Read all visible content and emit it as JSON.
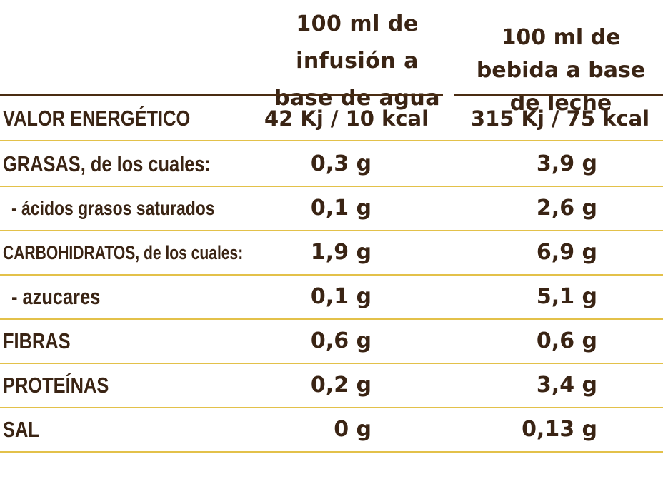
{
  "header": {
    "col1": "100 ml de infusión a base de agua",
    "col2": "100 ml de bebida a base de leche"
  },
  "rows": [
    {
      "label": "VALOR ENERGÉTICO",
      "v1": "42 Kj / 10 kcal",
      "v2": "315 Kj / 75 kcal"
    },
    {
      "label": "GRASAS, de los cuales:",
      "v1": "0,3 g",
      "v2": "3,9 g"
    },
    {
      "label": "- ácidos grasos saturados",
      "v1": "0,1 g",
      "v2": "2,6 g"
    },
    {
      "label": "CARBOHIDRATOS, de los cuales:",
      "v1": "1,9 g",
      "v2": "6,9 g"
    },
    {
      "label": "- azucares",
      "v1": "0,1 g",
      "v2": "5,1 g"
    },
    {
      "label": "FIBRAS",
      "v1": "0,6 g",
      "v2": "0,6 g"
    },
    {
      "label": "PROTEÍNAS",
      "v1": "0,2 g",
      "v2": "3,4 g"
    },
    {
      "label": "SAL",
      "v1": "0 g",
      "v2": "0,13 g"
    }
  ],
  "colors": {
    "text": "#3a2414",
    "header_rule": "#4a2c12",
    "row_rule": "#e3c14a"
  }
}
